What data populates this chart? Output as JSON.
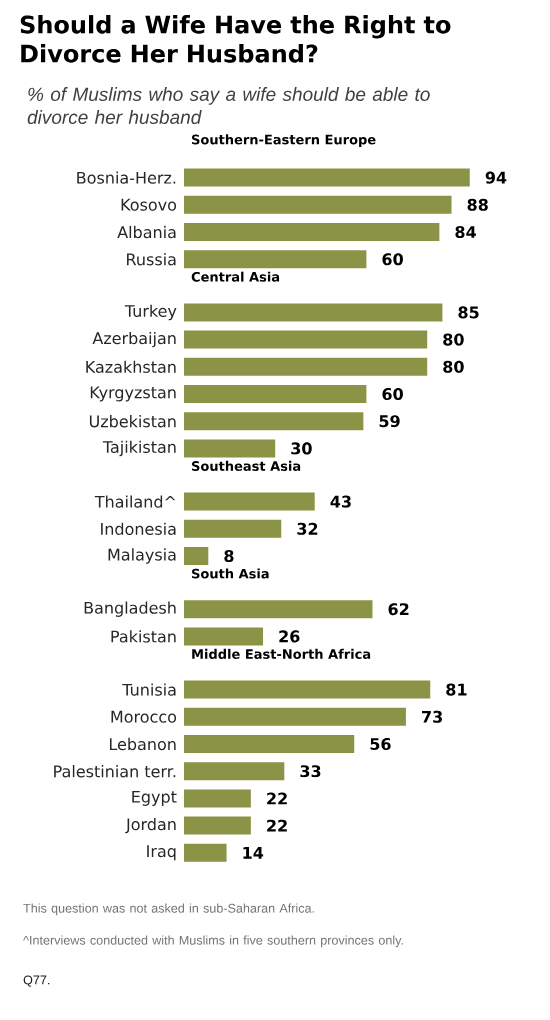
{
  "chart_data": [
    {
      "type": "other",
      "title": "Should a Wife Have the Right to Divorce Her Husband?",
      "subtitle": "% of Muslims who say a wife should be able to divorce her husband"
    },
    {
      "type": "bar",
      "orientation": "horizontal",
      "title": "Southern-Eastern  Europe",
      "categories": [
        "Bosnia-Herz.",
        "Kosovo",
        "Albania",
        "Russia"
      ],
      "values": [
        94,
        88,
        84,
        60
      ],
      "color": "#8b9346",
      "data_labels": true,
      "tick_labels": "y"
    },
    {
      "type": "bar",
      "orientation": "horizontal",
      "title": "Central Asia",
      "categories": [
        "Turkey",
        "Azerbaijan",
        "Kazakhstan",
        "Kyrgyzstan",
        "Uzbekistan",
        "Tajikistan"
      ],
      "values": [
        85,
        80,
        80,
        60,
        59,
        30
      ],
      "color": "#8b9346",
      "data_labels": true,
      "tick_labels": "y"
    },
    {
      "type": "bar",
      "orientation": "horizontal",
      "title": "Southeast Asia",
      "categories": [
        "Thailand^",
        "Indonesia",
        "Malaysia"
      ],
      "values": [
        43,
        32,
        8
      ],
      "color": "#8b9346",
      "data_labels": true,
      "tick_labels": "y"
    },
    {
      "type": "bar",
      "orientation": "horizontal",
      "title": "South Asia",
      "categories": [
        "Bangladesh",
        "Pakistan"
      ],
      "values": [
        62,
        26
      ],
      "color": "#8b9346",
      "data_labels": true,
      "tick_labels": "y"
    },
    {
      "type": "bar",
      "orientation": "horizontal",
      "title": "Middle East-North  Africa",
      "categories": [
        "Tunisia",
        "Morocco",
        "Lebanon",
        "Palestinian terr.",
        "Egypt",
        "Jordan",
        "Iraq"
      ],
      "values": [
        81,
        73,
        56,
        33,
        22,
        22,
        14
      ],
      "color": "#8b9346",
      "data_labels": true,
      "tick_labels": "y"
    },
    {
      "type": "other",
      "annotations": [
        "This question was not asked in sub-Saharan Africa.",
        "^Interviews conducted with Muslims in five southern provinces only.",
        "Q77."
      ]
    }
  ]
}
